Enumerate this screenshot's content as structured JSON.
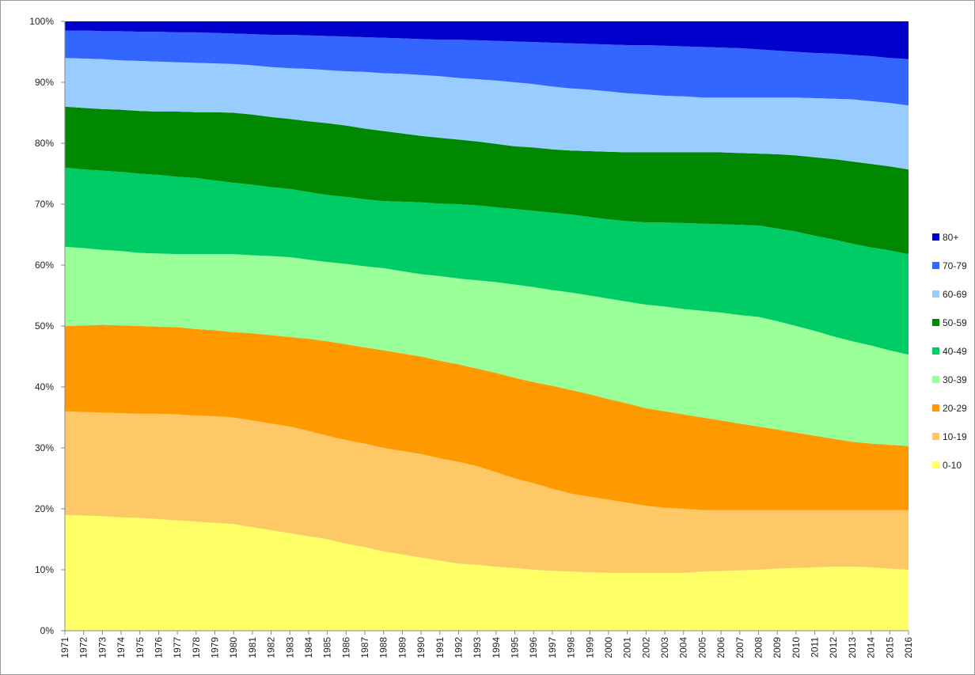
{
  "chart_data": {
    "type": "stacked_area_100",
    "categories": [
      "1971",
      "1972",
      "1973",
      "1974",
      "1975",
      "1976",
      "1977",
      "1978",
      "1979",
      "1980",
      "1981",
      "1982",
      "1983",
      "1984",
      "1985",
      "1986",
      "1987",
      "1988",
      "1989",
      "1990",
      "1991",
      "1992",
      "1993",
      "1994",
      "1995",
      "1996",
      "1997",
      "1998",
      "1999",
      "2000",
      "2001",
      "2002",
      "2003",
      "2004",
      "2005",
      "2006",
      "2007",
      "2008",
      "2009",
      "2010",
      "2011",
      "2012",
      "2013",
      "2014",
      "2015",
      "2016"
    ],
    "ylim": [
      0,
      100
    ],
    "yticks": [
      {
        "value": 0,
        "label": "0%"
      },
      {
        "value": 10,
        "label": "10%"
      },
      {
        "value": 20,
        "label": "20%"
      },
      {
        "value": 30,
        "label": "30%"
      },
      {
        "value": 40,
        "label": "40%"
      },
      {
        "value": 50,
        "label": "50%"
      },
      {
        "value": 60,
        "label": "60%"
      },
      {
        "value": 70,
        "label": "70%"
      },
      {
        "value": 80,
        "label": "80%"
      },
      {
        "value": 90,
        "label": "90%"
      },
      {
        "value": 100,
        "label": "100%"
      }
    ],
    "legend": "right",
    "series": [
      {
        "name": "0-10",
        "color": "#ffff66",
        "values": [
          19.0,
          18.9,
          18.8,
          18.6,
          18.5,
          18.3,
          18.1,
          17.9,
          17.7,
          17.5,
          17.0,
          16.5,
          16.0,
          15.5,
          15.0,
          14.3,
          13.7,
          13.0,
          12.5,
          12.0,
          11.5,
          11.0,
          10.8,
          10.5,
          10.3,
          10.0,
          9.8,
          9.7,
          9.6,
          9.5,
          9.5,
          9.5,
          9.5,
          9.5,
          9.7,
          9.8,
          9.9,
          10.0,
          10.2,
          10.3,
          10.4,
          10.5,
          10.5,
          10.4,
          10.2,
          10.0
        ]
      },
      {
        "name": "10-19",
        "color": "#ffc866",
        "values": [
          17.0,
          17.0,
          17.0,
          17.1,
          17.1,
          17.3,
          17.4,
          17.4,
          17.5,
          17.5,
          17.5,
          17.5,
          17.5,
          17.3,
          17.0,
          17.0,
          17.0,
          17.0,
          17.0,
          17.0,
          16.8,
          16.7,
          16.2,
          15.5,
          14.7,
          14.2,
          13.5,
          12.8,
          12.4,
          12.0,
          11.5,
          11.0,
          10.7,
          10.5,
          10.1,
          10.0,
          9.9,
          9.8,
          9.6,
          9.5,
          9.4,
          9.3,
          9.3,
          9.4,
          9.6,
          9.8
        ]
      },
      {
        "name": "20-29",
        "color": "#ff9900",
        "values": [
          14.0,
          14.2,
          14.4,
          14.4,
          14.4,
          14.3,
          14.3,
          14.2,
          14.1,
          14.0,
          14.3,
          14.5,
          14.7,
          15.1,
          15.5,
          15.7,
          15.8,
          16.0,
          16.0,
          16.0,
          16.0,
          16.0,
          16.0,
          16.3,
          16.5,
          16.6,
          16.9,
          17.0,
          16.8,
          16.5,
          16.3,
          16.0,
          15.8,
          15.5,
          15.2,
          14.7,
          14.2,
          13.7,
          13.2,
          12.7,
          12.2,
          11.7,
          11.2,
          10.9,
          10.7,
          10.5
        ]
      },
      {
        "name": "30-39",
        "color": "#99ff99",
        "values": [
          13.0,
          12.7,
          12.3,
          12.2,
          12.0,
          12.0,
          12.0,
          12.3,
          12.5,
          12.8,
          12.8,
          13.0,
          13.1,
          13.0,
          13.0,
          13.2,
          13.3,
          13.5,
          13.5,
          13.5,
          13.9,
          14.1,
          14.5,
          14.9,
          15.3,
          15.6,
          15.7,
          16.0,
          16.2,
          16.5,
          16.7,
          17.0,
          17.2,
          17.3,
          17.5,
          17.7,
          17.8,
          18.0,
          17.8,
          17.5,
          17.2,
          16.8,
          16.5,
          16.1,
          15.5,
          15.0
        ]
      },
      {
        "name": "40-49",
        "color": "#00cc66",
        "values": [
          13.0,
          12.9,
          13.0,
          13.0,
          13.0,
          12.9,
          12.7,
          12.5,
          12.1,
          11.7,
          11.6,
          11.3,
          11.2,
          11.1,
          11.0,
          11.0,
          11.0,
          11.0,
          11.4,
          11.8,
          11.9,
          12.2,
          12.3,
          12.3,
          12.4,
          12.5,
          12.7,
          12.8,
          12.9,
          13.0,
          13.2,
          13.5,
          13.8,
          14.1,
          14.3,
          14.5,
          14.8,
          15.0,
          15.2,
          15.5,
          15.6,
          15.9,
          16.0,
          16.1,
          16.4,
          16.5
        ]
      },
      {
        "name": "50-59",
        "color": "#008800",
        "values": [
          10.0,
          10.1,
          10.1,
          10.2,
          10.3,
          10.4,
          10.7,
          10.8,
          11.2,
          11.5,
          11.5,
          11.5,
          11.5,
          11.6,
          11.8,
          11.7,
          11.6,
          11.5,
          11.2,
          10.9,
          10.8,
          10.6,
          10.5,
          10.4,
          10.3,
          10.4,
          10.4,
          10.5,
          10.8,
          11.1,
          11.3,
          11.5,
          11.5,
          11.6,
          11.7,
          11.8,
          11.8,
          11.8,
          12.2,
          12.5,
          12.9,
          13.2,
          13.5,
          13.7,
          13.8,
          13.9
        ]
      },
      {
        "name": "60-69",
        "color": "#99ccff",
        "values": [
          8.0,
          8.1,
          8.2,
          8.1,
          8.2,
          8.2,
          8.1,
          8.1,
          8.0,
          8.0,
          8.1,
          8.2,
          8.3,
          8.6,
          8.7,
          8.9,
          9.3,
          9.5,
          9.8,
          10.0,
          10.1,
          10.1,
          10.2,
          10.4,
          10.5,
          10.4,
          10.3,
          10.2,
          10.1,
          9.9,
          9.7,
          9.5,
          9.3,
          9.2,
          9.0,
          9.0,
          9.1,
          9.2,
          9.3,
          9.5,
          9.7,
          9.9,
          10.2,
          10.3,
          10.4,
          10.5
        ]
      },
      {
        "name": "70-79",
        "color": "#3366ff",
        "values": [
          4.5,
          4.6,
          4.6,
          4.8,
          4.8,
          4.9,
          4.9,
          5.0,
          5.0,
          5.0,
          5.1,
          5.3,
          5.5,
          5.5,
          5.6,
          5.7,
          5.7,
          5.8,
          5.8,
          5.9,
          6.0,
          6.3,
          6.4,
          6.5,
          6.7,
          6.9,
          7.2,
          7.4,
          7.5,
          7.7,
          7.9,
          8.1,
          8.2,
          8.2,
          8.3,
          8.2,
          8.1,
          7.9,
          7.7,
          7.5,
          7.4,
          7.4,
          7.3,
          7.4,
          7.4,
          7.6
        ]
      },
      {
        "name": "80+",
        "color": "#0000cc",
        "values": [
          1.5,
          1.5,
          1.6,
          1.6,
          1.7,
          1.7,
          1.8,
          1.8,
          1.9,
          2.0,
          2.1,
          2.2,
          2.2,
          2.3,
          2.4,
          2.5,
          2.6,
          2.7,
          2.8,
          2.9,
          3.0,
          3.0,
          3.1,
          3.2,
          3.3,
          3.4,
          3.5,
          3.6,
          3.7,
          3.8,
          3.9,
          3.9,
          4.0,
          4.1,
          4.2,
          4.3,
          4.4,
          4.6,
          4.8,
          5.0,
          5.2,
          5.3,
          5.5,
          5.7,
          6.0,
          6.2
        ]
      }
    ]
  }
}
